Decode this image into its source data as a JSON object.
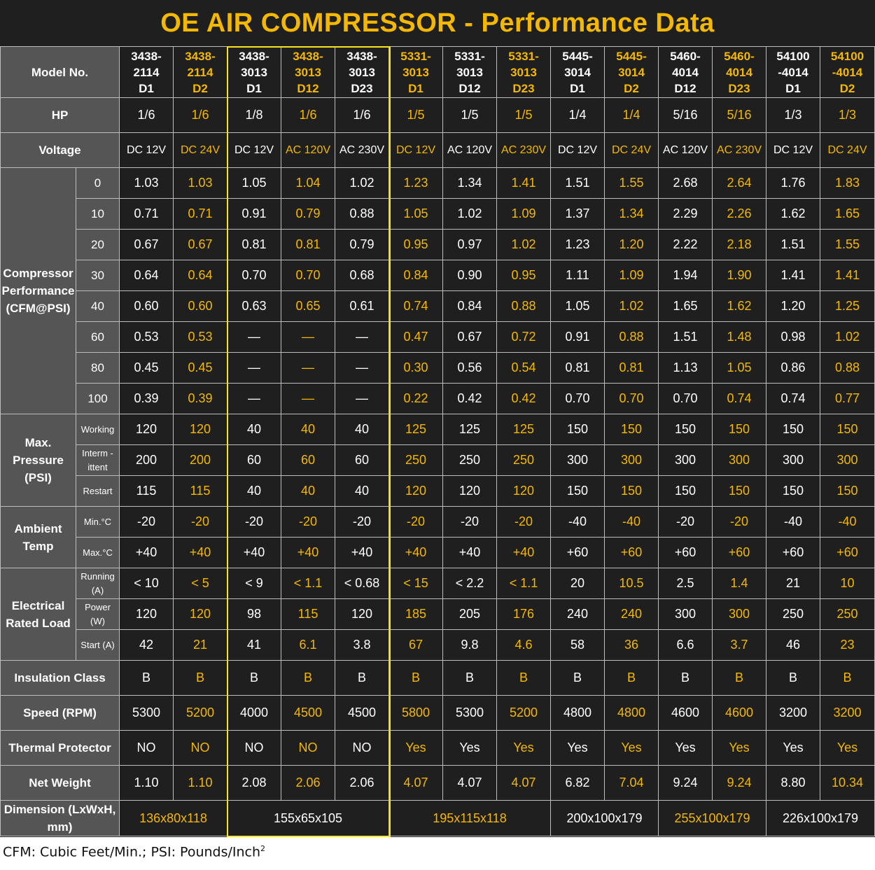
{
  "title": "OE AIR COMPRESSOR - Performance Data",
  "row_headers": {
    "model": "Model No.",
    "hp": "HP",
    "voltage": "Voltage",
    "compressor_performance": "Compressor Performance (CFM@PSI)",
    "max_pressure": "Max. Pressure (PSI)",
    "ambient_temp": "Ambient Temp",
    "electrical": "Electrical Rated Load",
    "insulation": "Insulation Class",
    "speed": "Speed (RPM)",
    "thermal": "Thermal Protector",
    "weight": "Net Weight",
    "dimension": "Dimension (LxWxH, mm)"
  },
  "columns": [
    {
      "model": [
        "3438-",
        "2114",
        "D1"
      ],
      "color": "white",
      "hp": "1/6",
      "voltage": "DC 12V",
      "cfm": [
        "1.03",
        "0.71",
        "0.67",
        "0.64",
        "0.60",
        "0.53",
        "0.45",
        "0.39"
      ],
      "pressure": [
        "120",
        "200",
        "115"
      ],
      "temp": [
        "-20",
        "+40"
      ],
      "elec": [
        "< 10",
        "120",
        "42"
      ],
      "insulation": "B",
      "speed": "5300",
      "thermal": "NO",
      "weight": "1.10"
    },
    {
      "model": [
        "3438-",
        "2114",
        "D2"
      ],
      "color": "yellow",
      "hp": "1/6",
      "voltage": "DC 24V",
      "cfm": [
        "1.03",
        "0.71",
        "0.67",
        "0.64",
        "0.60",
        "0.53",
        "0.45",
        "0.39"
      ],
      "pressure": [
        "120",
        "200",
        "115"
      ],
      "temp": [
        "-20",
        "+40"
      ],
      "elec": [
        "< 5",
        "120",
        "21"
      ],
      "insulation": "B",
      "speed": "5200",
      "thermal": "NO",
      "weight": "1.10"
    },
    {
      "model": [
        "3438-",
        "3013",
        "D1"
      ],
      "color": "white",
      "hp": "1/8",
      "voltage": "DC 12V",
      "cfm": [
        "1.05",
        "0.91",
        "0.81",
        "0.70",
        "0.63",
        "—",
        "—",
        "—"
      ],
      "pressure": [
        "40",
        "60",
        "40"
      ],
      "temp": [
        "-20",
        "+40"
      ],
      "elec": [
        "< 9",
        "98",
        "41"
      ],
      "insulation": "B",
      "speed": "4000",
      "thermal": "NO",
      "weight": "2.08"
    },
    {
      "model": [
        "3438-",
        "3013",
        "D12"
      ],
      "color": "yellow",
      "hp": "1/6",
      "voltage": "AC 120V",
      "cfm": [
        "1.04",
        "0.79",
        "0.81",
        "0.70",
        "0.65",
        "—",
        "—",
        "—"
      ],
      "pressure": [
        "40",
        "60",
        "40"
      ],
      "temp": [
        "-20",
        "+40"
      ],
      "elec": [
        "< 1.1",
        "115",
        "6.1"
      ],
      "insulation": "B",
      "speed": "4500",
      "thermal": "NO",
      "weight": "2.06"
    },
    {
      "model": [
        "3438-",
        "3013",
        "D23"
      ],
      "color": "white",
      "hp": "1/6",
      "voltage": "AC 230V",
      "cfm": [
        "1.02",
        "0.88",
        "0.79",
        "0.68",
        "0.61",
        "—",
        "—",
        "—"
      ],
      "pressure": [
        "40",
        "60",
        "40"
      ],
      "temp": [
        "-20",
        "+40"
      ],
      "elec": [
        "< 0.68",
        "120",
        "3.8"
      ],
      "insulation": "B",
      "speed": "4500",
      "thermal": "NO",
      "weight": "2.06"
    },
    {
      "model": [
        "5331-",
        "3013",
        "D1"
      ],
      "color": "yellow",
      "hp": "1/5",
      "voltage": "DC 12V",
      "cfm": [
        "1.23",
        "1.05",
        "0.95",
        "0.84",
        "0.74",
        "0.47",
        "0.30",
        "0.22"
      ],
      "pressure": [
        "125",
        "250",
        "120"
      ],
      "temp": [
        "-20",
        "+40"
      ],
      "elec": [
        "< 15",
        "185",
        "67"
      ],
      "insulation": "B",
      "speed": "5800",
      "thermal": "Yes",
      "weight": "4.07"
    },
    {
      "model": [
        "5331-",
        "3013",
        "D12"
      ],
      "color": "white",
      "hp": "1/5",
      "voltage": "AC 120V",
      "cfm": [
        "1.34",
        "1.02",
        "0.97",
        "0.90",
        "0.84",
        "0.67",
        "0.56",
        "0.42"
      ],
      "pressure": [
        "125",
        "250",
        "120"
      ],
      "temp": [
        "-20",
        "+40"
      ],
      "elec": [
        "< 2.2",
        "205",
        "9.8"
      ],
      "insulation": "B",
      "speed": "5300",
      "thermal": "Yes",
      "weight": "4.07"
    },
    {
      "model": [
        "5331-",
        "3013",
        "D23"
      ],
      "color": "yellow",
      "hp": "1/5",
      "voltage": "AC 230V",
      "cfm": [
        "1.41",
        "1.09",
        "1.02",
        "0.95",
        "0.88",
        "0.72",
        "0.54",
        "0.42"
      ],
      "pressure": [
        "125",
        "250",
        "120"
      ],
      "temp": [
        "-20",
        "+40"
      ],
      "elec": [
        "< 1.1",
        "176",
        "4.6"
      ],
      "insulation": "B",
      "speed": "5200",
      "thermal": "Yes",
      "weight": "4.07"
    },
    {
      "model": [
        "5445-",
        "3014",
        "D1"
      ],
      "color": "white",
      "hp": "1/4",
      "voltage": "DC 12V",
      "cfm": [
        "1.51",
        "1.37",
        "1.23",
        "1.11",
        "1.05",
        "0.91",
        "0.81",
        "0.70"
      ],
      "pressure": [
        "150",
        "300",
        "150"
      ],
      "temp": [
        "-40",
        "+60"
      ],
      "elec": [
        "20",
        "240",
        "58"
      ],
      "insulation": "B",
      "speed": "4800",
      "thermal": "Yes",
      "weight": "6.82"
    },
    {
      "model": [
        "5445-",
        "3014",
        "D2"
      ],
      "color": "yellow",
      "hp": "1/4",
      "voltage": "DC 24V",
      "cfm": [
        "1.55",
        "1.34",
        "1.20",
        "1.09",
        "1.02",
        "0.88",
        "0.81",
        "0.70"
      ],
      "pressure": [
        "150",
        "300",
        "150"
      ],
      "temp": [
        "-40",
        "+60"
      ],
      "elec": [
        "10.5",
        "240",
        "36"
      ],
      "insulation": "B",
      "speed": "4800",
      "thermal": "Yes",
      "weight": "7.04"
    },
    {
      "model": [
        "5460-",
        "4014",
        "D12"
      ],
      "color": "white",
      "hp": "5/16",
      "voltage": "AC 120V",
      "cfm": [
        "2.68",
        "2.29",
        "2.22",
        "1.94",
        "1.65",
        "1.51",
        "1.13",
        "0.70"
      ],
      "pressure": [
        "150",
        "300",
        "150"
      ],
      "temp": [
        "-20",
        "+60"
      ],
      "elec": [
        "2.5",
        "300",
        "6.6"
      ],
      "insulation": "B",
      "speed": "4600",
      "thermal": "Yes",
      "weight": "9.24"
    },
    {
      "model": [
        "5460-",
        "4014",
        "D23"
      ],
      "color": "yellow",
      "hp": "5/16",
      "voltage": "AC 230V",
      "cfm": [
        "2.64",
        "2.26",
        "2.18",
        "1.90",
        "1.62",
        "1.48",
        "1.05",
        "0.74"
      ],
      "pressure": [
        "150",
        "300",
        "150"
      ],
      "temp": [
        "-20",
        "+60"
      ],
      "elec": [
        "1.4",
        "300",
        "3.7"
      ],
      "insulation": "B",
      "speed": "4600",
      "thermal": "Yes",
      "weight": "9.24"
    },
    {
      "model": [
        "54100",
        "-4014",
        "D1"
      ],
      "color": "white",
      "hp": "1/3",
      "voltage": "DC 12V",
      "cfm": [
        "1.76",
        "1.62",
        "1.51",
        "1.41",
        "1.20",
        "0.98",
        "0.86",
        "0.74"
      ],
      "pressure": [
        "150",
        "300",
        "150"
      ],
      "temp": [
        "-40",
        "+60"
      ],
      "elec": [
        "21",
        "250",
        "46"
      ],
      "insulation": "B",
      "speed": "3200",
      "thermal": "Yes",
      "weight": "8.80"
    },
    {
      "model": [
        "54100",
        "-4014",
        "D2"
      ],
      "color": "yellow",
      "hp": "1/3",
      "voltage": "DC 24V",
      "cfm": [
        "1.83",
        "1.65",
        "1.55",
        "1.41",
        "1.25",
        "1.02",
        "0.88",
        "0.77"
      ],
      "pressure": [
        "150",
        "300",
        "150"
      ],
      "temp": [
        "-40",
        "+60"
      ],
      "elec": [
        "10",
        "250",
        "23"
      ],
      "insulation": "B",
      "speed": "3200",
      "thermal": "Yes",
      "weight": "10.34"
    }
  ],
  "psi_levels": [
    "0",
    "10",
    "20",
    "30",
    "40",
    "60",
    "80",
    "100"
  ],
  "pressure_labels": [
    "Working",
    "Interm -ittent",
    "Restart"
  ],
  "temp_labels": [
    "Min.°C",
    "Max.°C"
  ],
  "elec_labels": [
    "Running (A)",
    "Power (W)",
    "Start (A)"
  ],
  "dimensions": [
    {
      "value": "136x80x118",
      "span": 2,
      "color": "yellow"
    },
    {
      "value": "155x65x105",
      "span": 3,
      "color": "white"
    },
    {
      "value": "195x115x118",
      "span": 3,
      "color": "yellow"
    },
    {
      "value": "200x100x179",
      "span": 2,
      "color": "white"
    },
    {
      "value": "255x100x179",
      "span": 2,
      "color": "yellow"
    },
    {
      "value": "226x100x179",
      "span": 2,
      "color": "white"
    }
  ],
  "footer": {
    "text": "CFM: Cubic Feet/Min.;  PSI: Pounds/Inch",
    "superscript": "2"
  },
  "colors": {
    "accent": "#f5b800",
    "highlight_border": "#f7e51c",
    "header_bg": "#555555",
    "cell_bg": "#1f1f1f"
  }
}
